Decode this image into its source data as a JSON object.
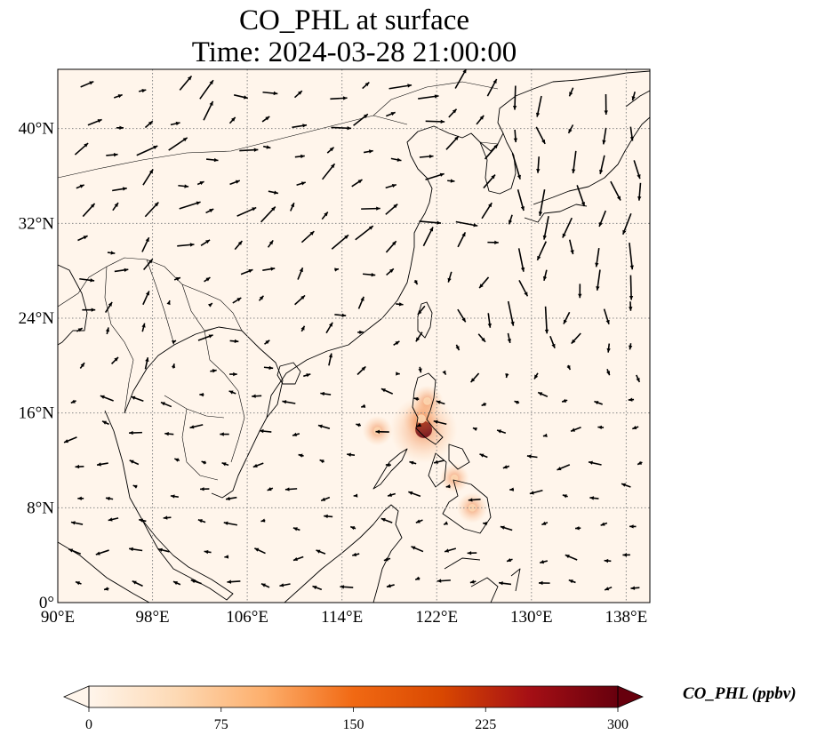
{
  "title_line1": "CO_PHL at surface",
  "title_line2": "Time: 2024-03-28 21:00:00",
  "map": {
    "lon_range": [
      90,
      140
    ],
    "lat_range": [
      0,
      45
    ],
    "lon_ticks": [
      {
        "value": 90,
        "label": "90°E"
      },
      {
        "value": 98,
        "label": "98°E"
      },
      {
        "value": 106,
        "label": "106°E"
      },
      {
        "value": 114,
        "label": "114°E"
      },
      {
        "value": 122,
        "label": "122°E"
      },
      {
        "value": 130,
        "label": "130°E"
      },
      {
        "value": 138,
        "label": "138°E"
      }
    ],
    "lat_ticks": [
      {
        "value": 0,
        "label": "0°"
      },
      {
        "value": 8,
        "label": "8°N"
      },
      {
        "value": 16,
        "label": "16°N"
      },
      {
        "value": 24,
        "label": "24°N"
      },
      {
        "value": 32,
        "label": "32°N"
      },
      {
        "value": 40,
        "label": "40°N"
      }
    ],
    "background_color": "#fff5eb",
    "gridline_style": "dotted",
    "plume": [
      {
        "lon": 120.9,
        "lat": 14.6,
        "value": 280
      },
      {
        "lon": 120.7,
        "lat": 15.5,
        "value": 70
      },
      {
        "lon": 121.2,
        "lat": 17.0,
        "value": 40
      },
      {
        "lon": 117.0,
        "lat": 14.5,
        "value": 30
      },
      {
        "lon": 125.0,
        "lat": 8.0,
        "value": 35
      },
      {
        "lon": 123.5,
        "lat": 10.5,
        "value": 25
      }
    ]
  },
  "colorbar": {
    "label": "CO_PHL (ppbv)",
    "min": 0,
    "max": 300,
    "ticks": [
      0,
      75,
      150,
      225,
      300
    ],
    "colors": [
      "#fff5eb",
      "#fdd9b4",
      "#fdae6b",
      "#f16913",
      "#d94801",
      "#a50f15",
      "#67000d"
    ]
  }
}
